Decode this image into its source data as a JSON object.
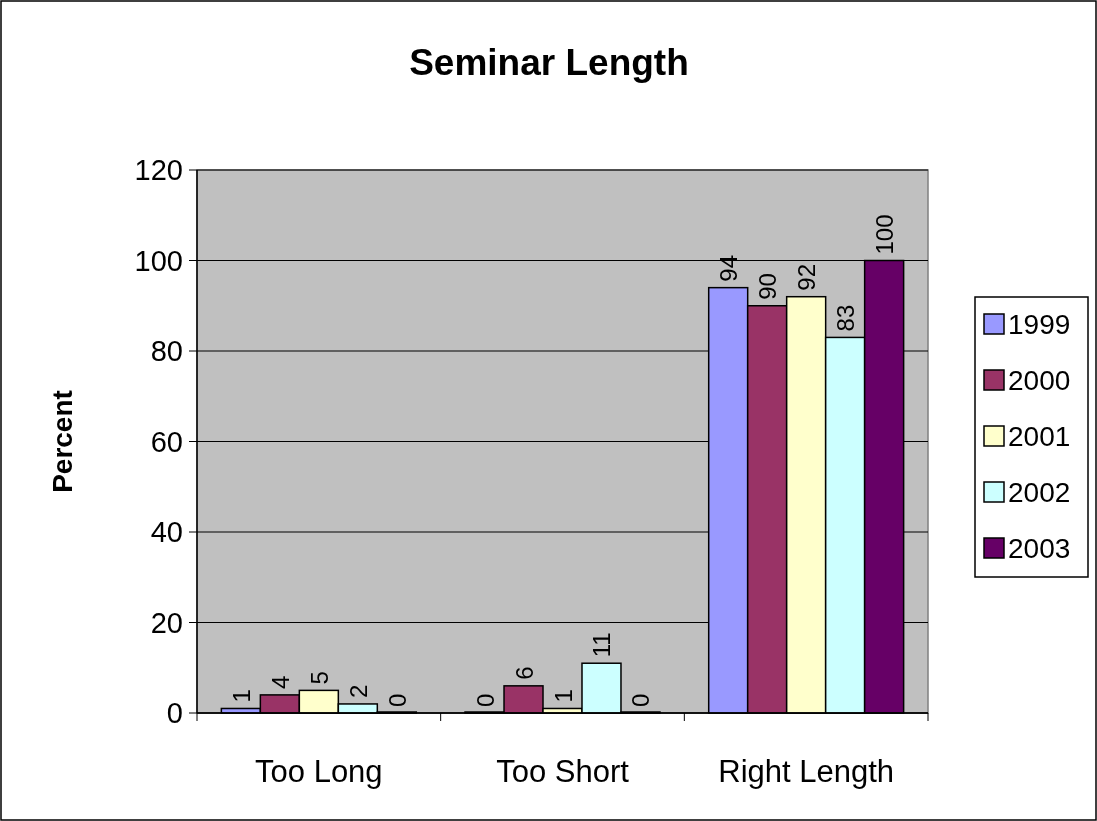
{
  "chart_data": {
    "type": "bar",
    "title": "Seminar Length",
    "ylabel": "Percent",
    "categories": [
      "Too Long",
      "Too Short",
      "Right Length"
    ],
    "series": [
      {
        "name": "1999",
        "color": "#9999ff",
        "values": [
          1,
          0,
          94
        ]
      },
      {
        "name": "2000",
        "color": "#993366",
        "values": [
          4,
          6,
          90
        ]
      },
      {
        "name": "2001",
        "color": "#ffffcc",
        "values": [
          5,
          1,
          92
        ]
      },
      {
        "name": "2002",
        "color": "#ccffff",
        "values": [
          2,
          11,
          83
        ]
      },
      {
        "name": "2003",
        "color": "#660066",
        "values": [
          0,
          0,
          100
        ]
      }
    ],
    "ylim": [
      0,
      120
    ],
    "yticks": [
      0,
      20,
      40,
      60,
      80,
      100,
      120
    ],
    "grid": "y",
    "legend": "right",
    "data_labels": true
  }
}
